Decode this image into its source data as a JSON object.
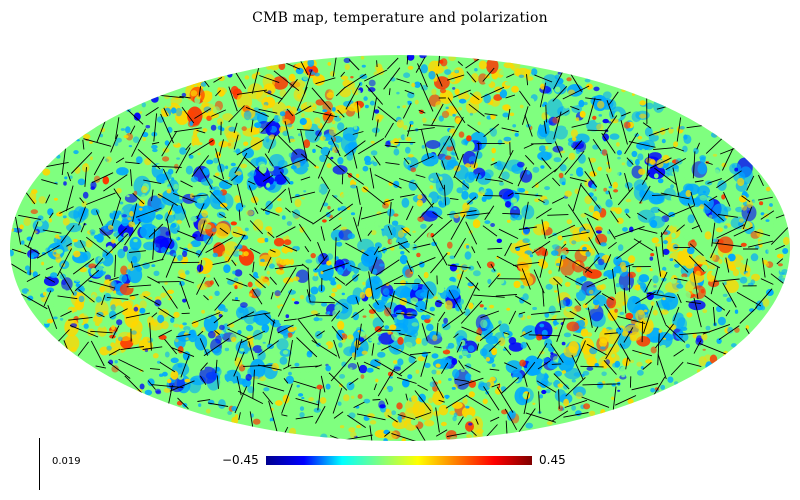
{
  "title": "CMB map, temperature and polarization",
  "projection": "mollweide",
  "colormap": {
    "name": "jet",
    "min_label": "−0.45",
    "max_label": "0.45",
    "min_value": -0.45,
    "max_value": 0.45,
    "stops": [
      "#00008f",
      "#0000ff",
      "#00ffff",
      "#7fff7f",
      "#ffff00",
      "#ff7f00",
      "#ff0000",
      "#7f0000"
    ]
  },
  "map_colors": {
    "mean": "#7fff7f",
    "cold": "#00a8ff",
    "very_cold": "#0000ff",
    "warm": "#ffd700",
    "hot": "#ff3300"
  },
  "polarization": {
    "scale_label": "0.019",
    "line_color": "#000000"
  }
}
